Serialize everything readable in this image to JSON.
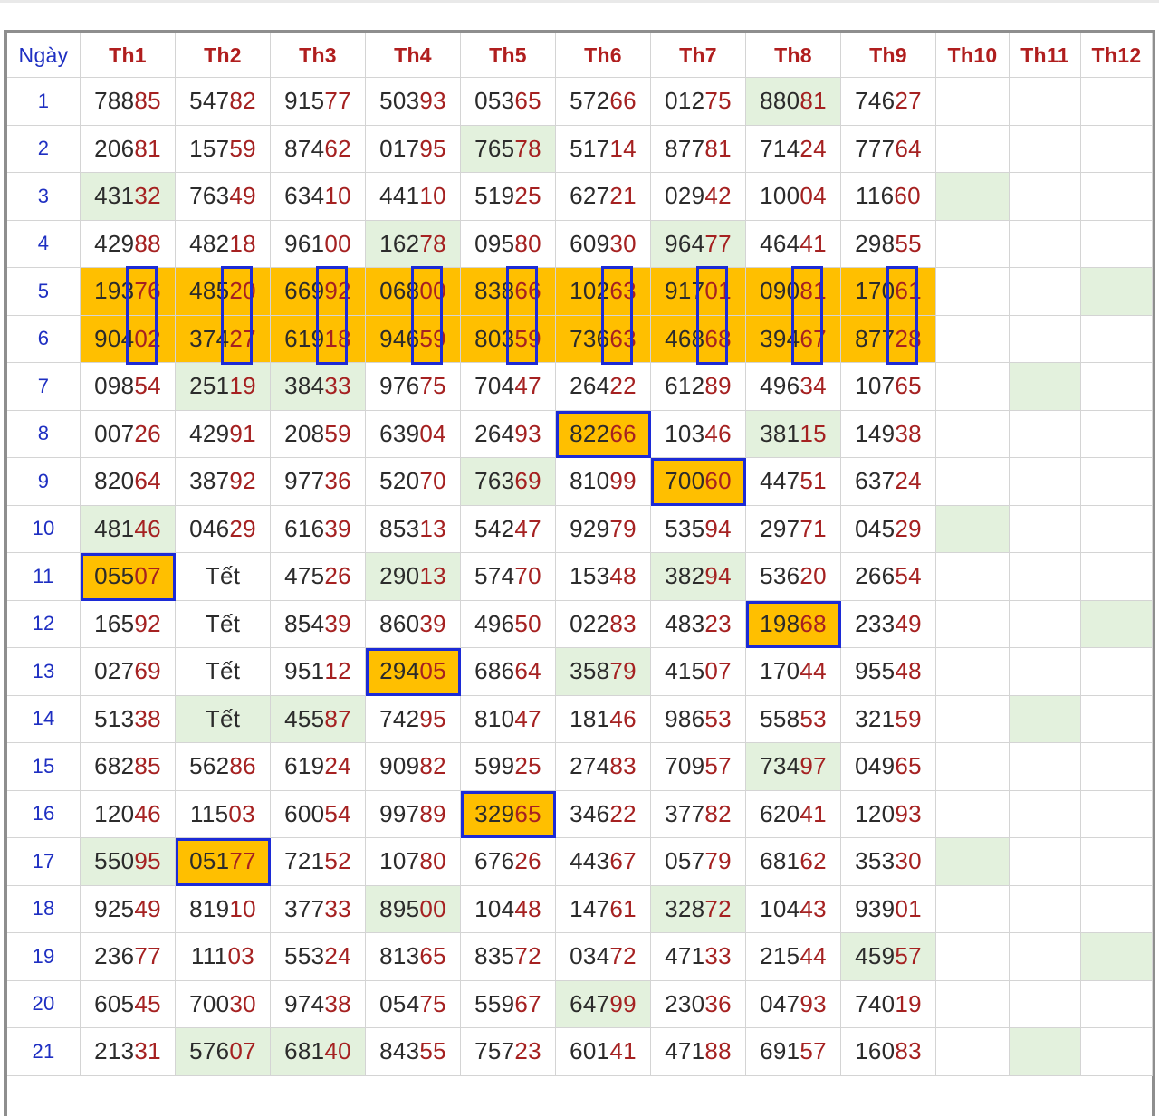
{
  "headers": [
    "Ngày",
    "Th1",
    "Th2",
    "Th3",
    "Th4",
    "Th5",
    "Th6",
    "Th7",
    "Th8",
    "Th9",
    "Th10",
    "Th11",
    "Th12"
  ],
  "rows": [
    {
      "day": "1",
      "values": [
        "78885",
        "54782",
        "91577",
        "50393",
        "05365",
        "57266",
        "01275",
        "88081",
        "74627",
        "",
        "",
        ""
      ]
    },
    {
      "day": "2",
      "values": [
        "20681",
        "15759",
        "87462",
        "01795",
        "76578",
        "51714",
        "87781",
        "71424",
        "77764",
        "",
        "",
        ""
      ]
    },
    {
      "day": "3",
      "values": [
        "43132",
        "76349",
        "63410",
        "44110",
        "51925",
        "62721",
        "02942",
        "10004",
        "11660",
        "",
        "",
        ""
      ]
    },
    {
      "day": "4",
      "values": [
        "42988",
        "48218",
        "96100",
        "16278",
        "09580",
        "60930",
        "96477",
        "46441",
        "29855",
        "",
        "",
        ""
      ]
    },
    {
      "day": "5",
      "values": [
        "19376",
        "48520",
        "66992",
        "06800",
        "83866",
        "10263",
        "91701",
        "09081",
        "17061",
        "",
        "",
        ""
      ]
    },
    {
      "day": "6",
      "values": [
        "90402",
        "37427",
        "61918",
        "94659",
        "80359",
        "73663",
        "46868",
        "39467",
        "87728",
        "",
        "",
        ""
      ]
    },
    {
      "day": "7",
      "values": [
        "09854",
        "25119",
        "38433",
        "97675",
        "70447",
        "26422",
        "61289",
        "49634",
        "10765",
        "",
        "",
        ""
      ]
    },
    {
      "day": "8",
      "values": [
        "00726",
        "42991",
        "20859",
        "63904",
        "26493",
        "82266",
        "10346",
        "38115",
        "14938",
        "",
        "",
        ""
      ]
    },
    {
      "day": "9",
      "values": [
        "82064",
        "38792",
        "97736",
        "52070",
        "76369",
        "81099",
        "70060",
        "44751",
        "63724",
        "",
        "",
        ""
      ]
    },
    {
      "day": "10",
      "values": [
        "48146",
        "04629",
        "61639",
        "85313",
        "54247",
        "92979",
        "53594",
        "29771",
        "04529",
        "",
        "",
        ""
      ]
    },
    {
      "day": "11",
      "values": [
        "05507",
        "Tết",
        "47526",
        "29013",
        "57470",
        "15348",
        "38294",
        "53620",
        "26654",
        "",
        "",
        ""
      ]
    },
    {
      "day": "12",
      "values": [
        "16592",
        "Tết",
        "85439",
        "86039",
        "49650",
        "02283",
        "48323",
        "19868",
        "23349",
        "",
        "",
        ""
      ]
    },
    {
      "day": "13",
      "values": [
        "02769",
        "Tết",
        "95112",
        "29405",
        "68664",
        "35879",
        "41507",
        "17044",
        "95548",
        "",
        "",
        ""
      ]
    },
    {
      "day": "14",
      "values": [
        "51338",
        "Tết",
        "45587",
        "74295",
        "81047",
        "18146",
        "98653",
        "55853",
        "32159",
        "",
        "",
        ""
      ]
    },
    {
      "day": "15",
      "values": [
        "68285",
        "56286",
        "61924",
        "90982",
        "59925",
        "27483",
        "70957",
        "73497",
        "04965",
        "",
        "",
        ""
      ]
    },
    {
      "day": "16",
      "values": [
        "12046",
        "11503",
        "60054",
        "99789",
        "32965",
        "34622",
        "37782",
        "62041",
        "12093",
        "",
        "",
        ""
      ]
    },
    {
      "day": "17",
      "values": [
        "55095",
        "05177",
        "72152",
        "10780",
        "67626",
        "44367",
        "05779",
        "68162",
        "35330",
        "",
        "",
        ""
      ]
    },
    {
      "day": "18",
      "values": [
        "92549",
        "81910",
        "37733",
        "89500",
        "10448",
        "14761",
        "32872",
        "10443",
        "93901",
        "",
        "",
        ""
      ]
    },
    {
      "day": "19",
      "values": [
        "23677",
        "11103",
        "55324",
        "81365",
        "83572",
        "03472",
        "47133",
        "21544",
        "45957",
        "",
        "",
        ""
      ]
    },
    {
      "day": "20",
      "values": [
        "60545",
        "70030",
        "97438",
        "05475",
        "55967",
        "64799",
        "23036",
        "04793",
        "74019",
        "",
        "",
        ""
      ]
    },
    {
      "day": "21",
      "values": [
        "21331",
        "57607",
        "68140",
        "84355",
        "75723",
        "60141",
        "47188",
        "69157",
        "16083",
        "",
        "",
        ""
      ]
    }
  ],
  "green_cells": [
    [
      0,
      8
    ],
    [
      1,
      5
    ],
    [
      2,
      1
    ],
    [
      2,
      10
    ],
    [
      3,
      4
    ],
    [
      3,
      7
    ],
    [
      4,
      12
    ],
    [
      6,
      2
    ],
    [
      6,
      3
    ],
    [
      6,
      11
    ],
    [
      7,
      8
    ],
    [
      8,
      5
    ],
    [
      9,
      1
    ],
    [
      9,
      10
    ],
    [
      10,
      4
    ],
    [
      10,
      7
    ],
    [
      11,
      12
    ],
    [
      12,
      6
    ],
    [
      13,
      2
    ],
    [
      13,
      3
    ],
    [
      13,
      11
    ],
    [
      14,
      8
    ],
    [
      16,
      1
    ],
    [
      16,
      10
    ],
    [
      17,
      4
    ],
    [
      17,
      7
    ],
    [
      18,
      9
    ],
    [
      18,
      12
    ],
    [
      19,
      6
    ],
    [
      20,
      2
    ],
    [
      20,
      3
    ],
    [
      20,
      11
    ]
  ],
  "highlight_rows": [
    4,
    5
  ],
  "marked_cells": [
    [
      7,
      6
    ],
    [
      8,
      7
    ],
    [
      10,
      1
    ],
    [
      11,
      8
    ],
    [
      12,
      4
    ],
    [
      15,
      5
    ],
    [
      16,
      2
    ]
  ],
  "colors": {
    "header_text": "#b01e1e",
    "day_text": "#1e2fc2",
    "orange_fill": "#ffbf00",
    "green_fill": "#e3f1dd",
    "box_border": "#1c2bd6",
    "emphasis_digits": "#a52121"
  }
}
